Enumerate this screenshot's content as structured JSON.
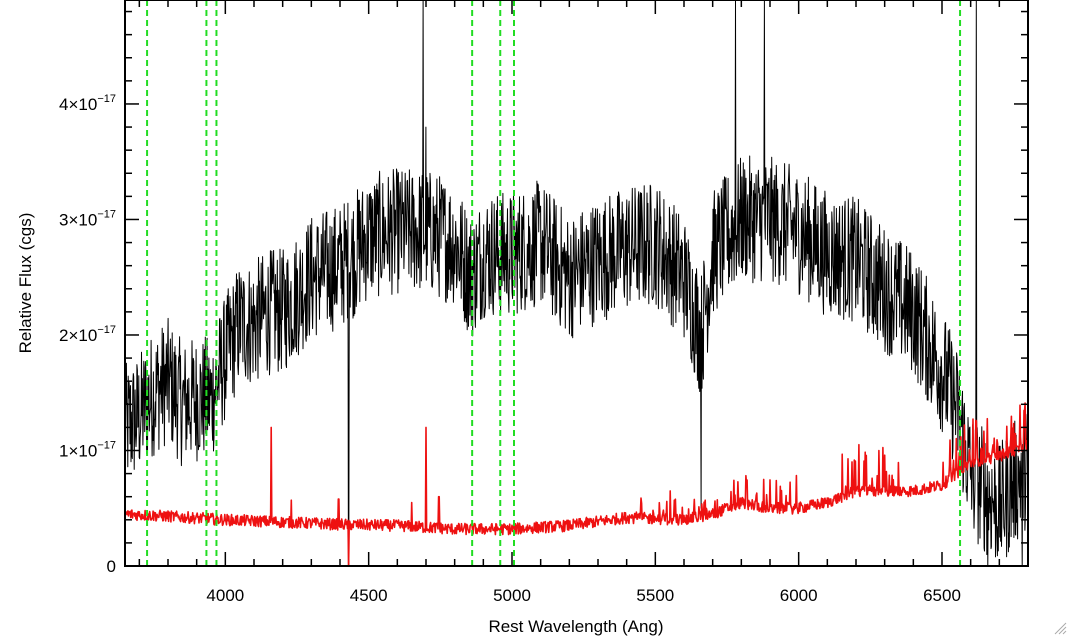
{
  "chart_data": {
    "type": "line",
    "title": "",
    "xlabel": "Rest Wavelength (Ang)",
    "ylabel": "Relative Flux (cgs)",
    "xlim": [
      3650,
      6800
    ],
    "ylim": [
      0,
      4.9e-17
    ],
    "x_ticks": [
      {
        "value": 4000,
        "label": "4000"
      },
      {
        "value": 4500,
        "label": "4500"
      },
      {
        "value": 5000,
        "label": "5000"
      },
      {
        "value": 5500,
        "label": "5500"
      },
      {
        "value": 6000,
        "label": "6000"
      },
      {
        "value": 6500,
        "label": "6500"
      }
    ],
    "y_ticks": [
      {
        "value": 0,
        "mantissa": "0",
        "exponent": ""
      },
      {
        "value": 1e-17,
        "mantissa": "1×10",
        "exponent": "−17"
      },
      {
        "value": 2e-17,
        "mantissa": "2×10",
        "exponent": "−17"
      },
      {
        "value": 3e-17,
        "mantissa": "3×10",
        "exponent": "−17"
      },
      {
        "value": 4e-17,
        "mantissa": "4×10",
        "exponent": "−17"
      }
    ],
    "vertical_lines": {
      "color": "#22dd22",
      "style": "dashed",
      "x": [
        3727,
        3934,
        3969,
        4861,
        4959,
        5007,
        6563
      ]
    },
    "series": [
      {
        "color": "#000000",
        "noise": 5.5e-18,
        "x": [
          3650,
          3700,
          3750,
          3800,
          3850,
          3900,
          3950,
          4000,
          4050,
          4100,
          4150,
          4200,
          4300,
          4400,
          4450,
          4500,
          4600,
          4700,
          4800,
          4860,
          4900,
          5000,
          5100,
          5200,
          5300,
          5400,
          5500,
          5600,
          5660,
          5700,
          5800,
          5900,
          6000,
          6100,
          6200,
          6300,
          6400,
          6500,
          6560,
          6600,
          6700,
          6800
        ],
        "values": [
          1.2e-17,
          1.3e-17,
          1.5e-17,
          1.6e-17,
          1.4e-17,
          1.45e-17,
          1.45e-17,
          1.8e-17,
          2.1e-17,
          2.1e-17,
          2.2e-17,
          2.2e-17,
          2.5e-17,
          2.6e-17,
          2.7e-17,
          2.85e-17,
          2.9e-17,
          2.9e-17,
          2.8e-17,
          2.5e-17,
          2.7e-17,
          2.7e-17,
          2.8e-17,
          2.5e-17,
          2.65e-17,
          2.75e-17,
          2.8e-17,
          2.5e-17,
          2e-17,
          2.7e-17,
          3e-17,
          3e-17,
          2.9e-17,
          2.7e-17,
          2.65e-17,
          2.4e-17,
          2.2e-17,
          1.7e-17,
          1.3e-17,
          8e-18,
          5e-18,
          9e-18
        ],
        "spikes": [
          {
            "x": 4430,
            "value": 0.0
          },
          {
            "x": 4690,
            "value": 4.9e-17
          },
          {
            "x": 4700,
            "value": 3.8e-17
          },
          {
            "x": 5660,
            "value": 5e-18
          },
          {
            "x": 5780,
            "value": 4.9e-17
          },
          {
            "x": 5880,
            "value": 4.9e-17
          },
          {
            "x": 6620,
            "value": 4.9e-17
          },
          {
            "x": 6660,
            "value": 0.0
          },
          {
            "x": 6780,
            "value": 0.0
          }
        ]
      },
      {
        "color": "#ee1111",
        "noise": 5e-19,
        "x": [
          3650,
          3800,
          4000,
          4200,
          4400,
          4600,
          4800,
          5000,
          5200,
          5400,
          5600,
          5700,
          5800,
          5900,
          6000,
          6100,
          6200,
          6300,
          6400,
          6500,
          6550,
          6600,
          6700,
          6800
        ],
        "values": [
          4.5e-18,
          4.3e-18,
          4e-18,
          3.8e-18,
          3.6e-18,
          3.5e-18,
          3.2e-18,
          3.2e-18,
          3.5e-18,
          4.2e-18,
          4e-18,
          4.5e-18,
          5.5e-18,
          5e-18,
          5e-18,
          5.5e-18,
          6.5e-18,
          6.5e-18,
          6.5e-18,
          7e-18,
          8e-18,
          9e-18,
          9.5e-18,
          1.05e-17
        ],
        "spikes": [
          {
            "x": 4160,
            "value": 1.2e-17
          },
          {
            "x": 4230,
            "value": 5.7e-18
          },
          {
            "x": 4395,
            "value": 5.8e-18
          },
          {
            "x": 4430,
            "value": 0.0
          },
          {
            "x": 4650,
            "value": 5.5e-18
          },
          {
            "x": 4700,
            "value": 1.2e-17
          },
          {
            "x": 4745,
            "value": 6e-18
          },
          {
            "x": 6210,
            "value": 1.05e-17
          },
          {
            "x": 6280,
            "value": 1e-17
          },
          {
            "x": 6790,
            "value": 1.35e-17
          }
        ]
      }
    ]
  }
}
